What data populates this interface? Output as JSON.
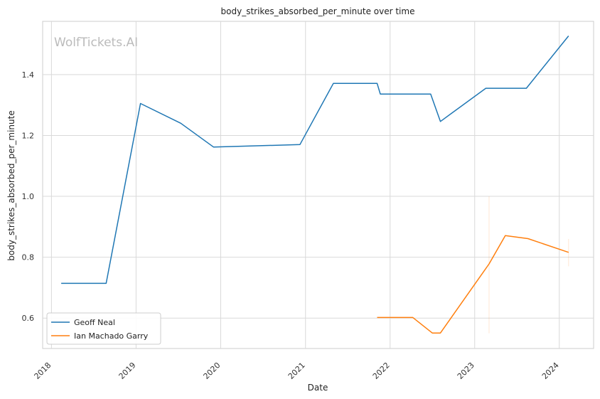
{
  "chart_data": {
    "type": "line",
    "title": "body_strikes_absorbed_per_minute over time",
    "xlabel": "Date",
    "ylabel": "body_strikes_absorbed_per_minute",
    "watermark": "WolfTickets.AI",
    "xlim": [
      "2017-11-24",
      "2024-05-28"
    ],
    "ylim": [
      0.5,
      1.575
    ],
    "x_ticks": [
      "2018",
      "2019",
      "2020",
      "2021",
      "2022",
      "2023",
      "2024"
    ],
    "y_ticks": [
      "0.6",
      "0.8",
      "1.0",
      "1.2",
      "1.4"
    ],
    "grid": true,
    "legend_position": "bottom-left",
    "series": [
      {
        "name": "Geoff Neal",
        "color": "#1f77b4",
        "x": [
          "2018-02-12",
          "2018-08-25",
          "2019-01-20",
          "2019-07-13",
          "2019-12-01",
          "2020-12-08",
          "2021-05-01",
          "2021-11-06",
          "2021-11-20",
          "2022-06-25",
          "2022-08-06",
          "2023-02-18",
          "2023-08-12",
          "2024-02-10"
        ],
        "y": [
          0.714,
          0.714,
          1.305,
          1.24,
          1.162,
          1.17,
          1.371,
          1.371,
          1.336,
          1.336,
          1.246,
          1.355,
          1.355,
          1.527
        ]
      },
      {
        "name": "Ian Machado Garry",
        "color": "#ff7f0e",
        "x": [
          "2021-11-06",
          "2022-04-09",
          "2022-07-02",
          "2022-08-06",
          "2023-03-04",
          "2023-05-13",
          "2023-08-19",
          "2024-02-10"
        ],
        "y": [
          0.602,
          0.602,
          0.551,
          0.551,
          0.778,
          0.871,
          0.861,
          0.816
        ]
      }
    ]
  }
}
